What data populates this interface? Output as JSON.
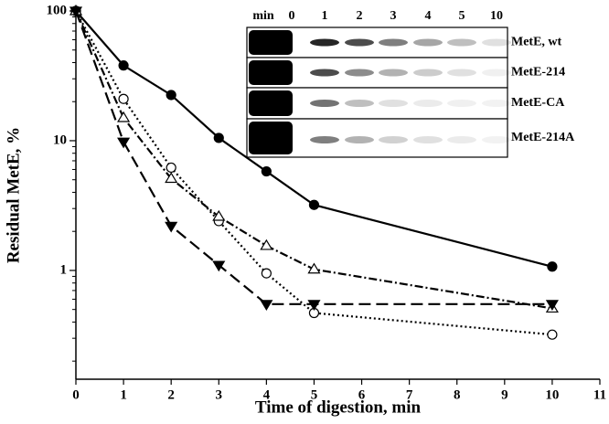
{
  "chart_data": {
    "type": "line",
    "x_label": "Time of digestion, min",
    "y_label": "Residual MetE, %",
    "x": [
      0,
      1,
      2,
      3,
      4,
      5,
      10
    ],
    "xlim": [
      0,
      11
    ],
    "xticks": [
      0,
      1,
      2,
      3,
      4,
      5,
      6,
      7,
      8,
      9,
      10,
      11
    ],
    "ylim": [
      0.145,
      100
    ],
    "yticks": [
      1,
      10,
      100
    ],
    "y_log": true,
    "y_minor_ticks": [
      0.2,
      0.3,
      0.4,
      0.5,
      0.6,
      0.7,
      0.8,
      0.9,
      2,
      3,
      4,
      5,
      6,
      7,
      8,
      9,
      20,
      30,
      40,
      50,
      60,
      70,
      80,
      90
    ],
    "series": [
      {
        "color": "#000000",
        "marker": "filled-circle",
        "line": "solid",
        "values": [
          100,
          38,
          22.5,
          10.5,
          5.8,
          3.2,
          1.07
        ]
      },
      {
        "color": "#000000",
        "marker": "open-circle",
        "line": "dotted",
        "values": [
          100,
          21,
          6.2,
          2.4,
          0.95,
          0.47,
          0.32
        ]
      },
      {
        "color": "#000000",
        "marker": "open-triangle",
        "line": "dash-dot",
        "values": [
          100,
          15,
          5.1,
          2.6,
          1.55,
          1.02,
          0.51
        ]
      },
      {
        "color": "#000000",
        "marker": "filled-triangle-down",
        "line": "dashed",
        "values": [
          100,
          9.8,
          2.2,
          1.1,
          0.55,
          0.55,
          0.55
        ]
      }
    ],
    "inset": {
      "header": "min",
      "lanes": [
        "0",
        "1",
        "2",
        "3",
        "4",
        "5",
        "10"
      ],
      "rows": [
        "MetE, wt",
        "MetE-214",
        "MetE-CA",
        "MetE-214A"
      ]
    }
  }
}
